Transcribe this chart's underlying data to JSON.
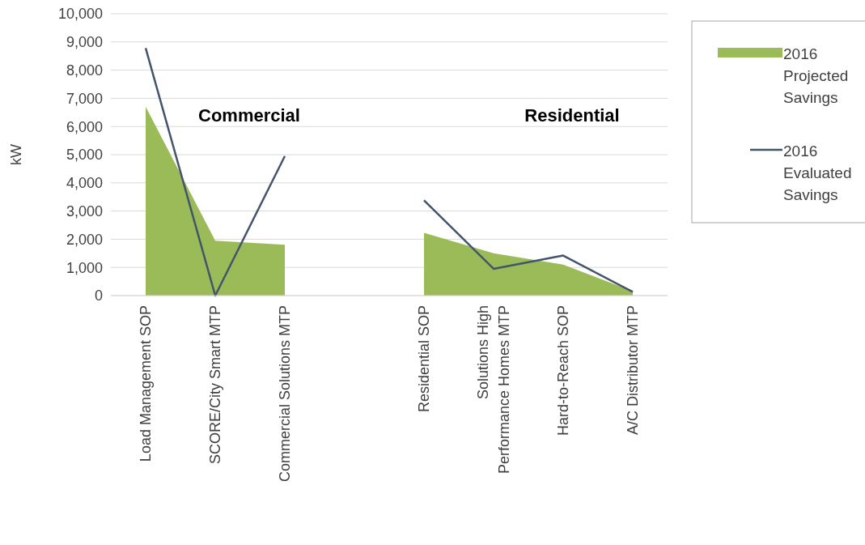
{
  "chart_data": {
    "type": "area",
    "ylabel": "kW",
    "categories": [
      "Load Management SOP",
      "SCORE/City Smart MTP",
      "Commercial Solutions MTP",
      null,
      "Residential SOP",
      "Solutions High Performance Homes MTP",
      "Hard-to-Reach SOP",
      "A/C Distributor MTP"
    ],
    "series": [
      {
        "name": "2016 Projected Savings",
        "color": "#9bbb59",
        "values": [
          6700,
          1950,
          1800,
          null,
          2230,
          1500,
          1100,
          150
        ]
      },
      {
        "name": "2016 Evaluated Savings",
        "type": "line",
        "color": "#44546a",
        "values": [
          8780,
          0,
          4950,
          null,
          3380,
          950,
          1420,
          130
        ]
      }
    ],
    "annotations": [
      "Commercial",
      "Residential"
    ],
    "ylim": [
      0,
      10000
    ],
    "yticks": [
      {
        "value": 0,
        "label": "0"
      },
      {
        "value": 1000,
        "label": "1,000"
      },
      {
        "value": 2000,
        "label": "2,000"
      },
      {
        "value": 3000,
        "label": "3,000"
      },
      {
        "value": 4000,
        "label": "4,000"
      },
      {
        "value": 5000,
        "label": "5,000"
      },
      {
        "value": 6000,
        "label": "6,000"
      },
      {
        "value": 7000,
        "label": "7,000"
      },
      {
        "value": 8000,
        "label": "8,000"
      },
      {
        "value": 9000,
        "label": "9,000"
      },
      {
        "value": 10000,
        "label": "10,000"
      }
    ],
    "grid": true,
    "legend": "right",
    "line_style": "solid",
    "marker": "none"
  }
}
